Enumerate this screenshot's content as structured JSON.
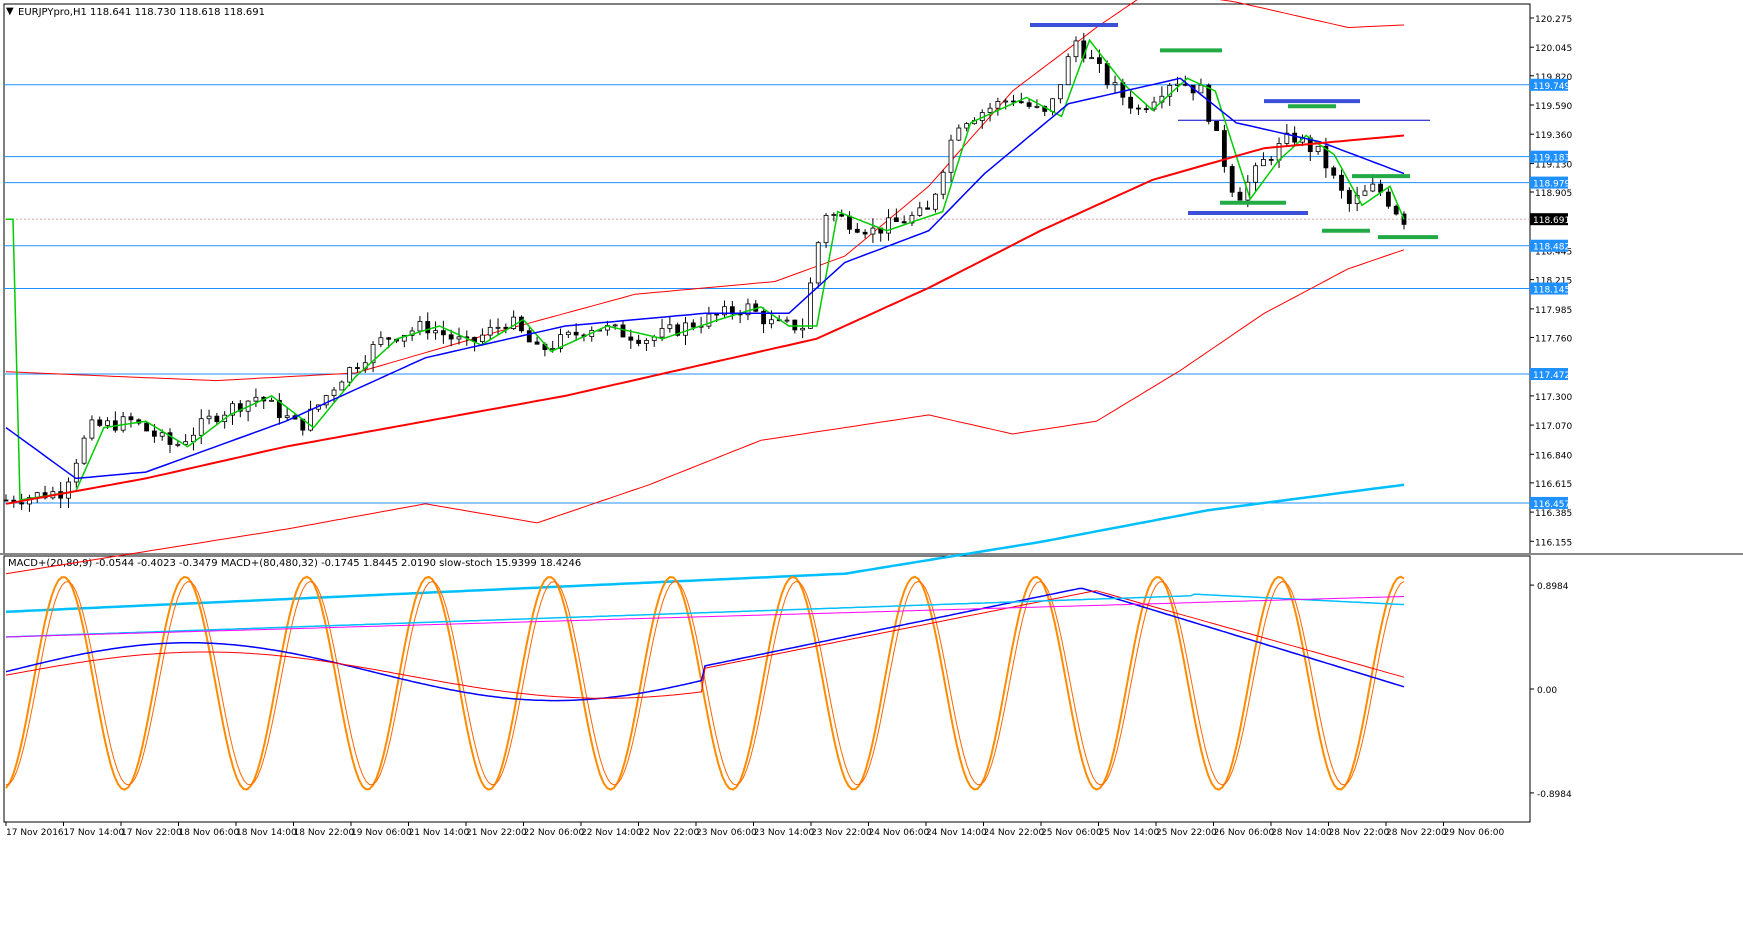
{
  "main_panel": {
    "symbol_header": "EURJPYpro,H1  118.641 118.730 118.618 118.691",
    "price_ticks": [
      "120.275",
      "120.045",
      "119.820",
      "119.590",
      "119.360",
      "119.130",
      "118.905",
      "118.445",
      "118.215",
      "117.985",
      "117.760",
      "117.300",
      "117.070",
      "116.840",
      "116.615",
      "116.385",
      "116.155"
    ],
    "level_labels": [
      "119.749",
      "119.183",
      "118.979",
      "118.482",
      "118.145",
      "117.472",
      "116.457"
    ],
    "current_price": "118.691",
    "colors": {
      "level_line": "#1e90ff",
      "level_label_bg": "#1e90ff",
      "current_label_bg": "#000000",
      "green_ma": "#00cc00",
      "blue_ma": "#0000ff",
      "red_ma": "#ff0000",
      "envelope": "#ff0000",
      "long_ma": "#00bfff",
      "bull_candle": "#ffffff",
      "bear_candle": "#000000"
    }
  },
  "indicator_panel": {
    "header": "MACD+(20,80,9) -0.0544 -0.4023 -0.3479   MACD+(80,480,32) -0.1745 1.8445 2.0190   slow-stoch 15.9399 18.4246",
    "ticks": [
      "0.8984",
      "0.00",
      "-0.8984"
    ],
    "colors": {
      "stoch_main": "#ff8c00",
      "stoch_signal": "#ff6600",
      "macd_fast": "#0000ff",
      "macd_slow_signal": "#ff0000",
      "macd_long": "#00bfff",
      "macd_long_signal": "#ff00ff"
    }
  },
  "time_axis": {
    "labels": [
      "17 Nov 2016",
      "17 Nov 14:00",
      "17 Nov 22:00",
      "18 Nov 06:00",
      "18 Nov 14:00",
      "18 Nov 22:00",
      "19 Nov 06:00",
      "21 Nov 14:00",
      "21 Nov 22:00",
      "22 Nov 06:00",
      "22 Nov 14:00",
      "22 Nov 22:00",
      "23 Nov 06:00",
      "23 Nov 14:00",
      "23 Nov 22:00",
      "24 Nov 06:00",
      "24 Nov 14:00",
      "24 Nov 22:00",
      "25 Nov 06:00",
      "25 Nov 14:00",
      "25 Nov 22:00",
      "26 Nov 06:00",
      "28 Nov 14:00",
      "28 Nov 22:00",
      "28 Nov 22:00",
      "29 Nov 06:00"
    ]
  }
}
